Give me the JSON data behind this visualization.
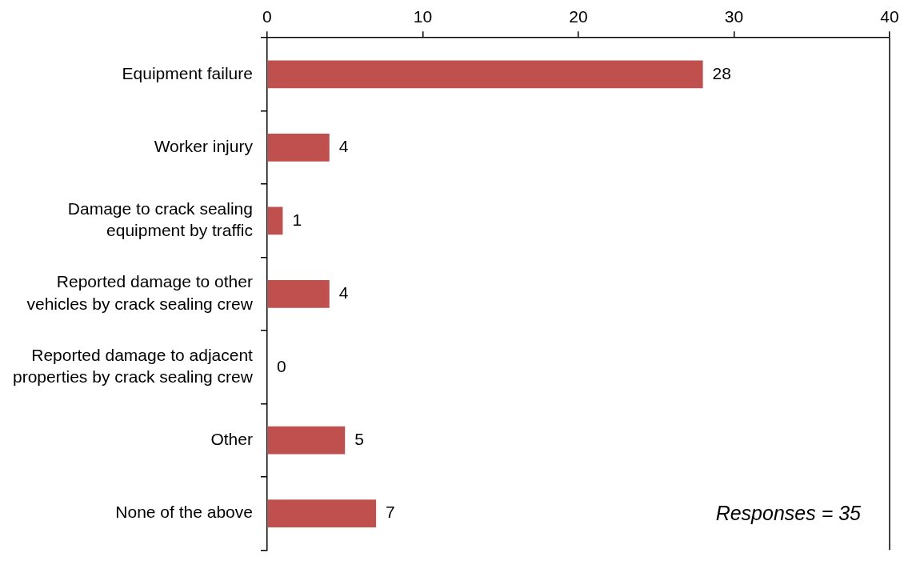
{
  "chart_data": {
    "type": "bar",
    "orientation": "horizontal",
    "categories": [
      "Equipment failure",
      "Worker injury",
      "Damage to crack sealing equipment by traffic",
      "Reported damage to other vehicles by crack sealing crew",
      "Reported damage to adjacent properties by crack sealing crew",
      "Other",
      "None of the above"
    ],
    "values": [
      28,
      4,
      1,
      4,
      0,
      5,
      7
    ],
    "color": "#c0504d",
    "xlim": [
      0,
      40
    ],
    "xticks": [
      0,
      10,
      20,
      30,
      40
    ],
    "grid": false,
    "legend": false,
    "data_labels": true,
    "annotations": [
      "Responses = 35"
    ]
  }
}
